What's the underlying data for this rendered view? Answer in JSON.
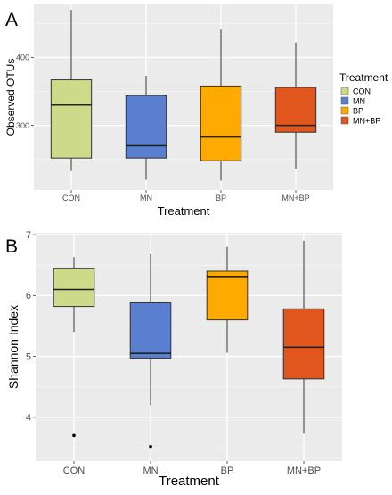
{
  "chart_data": [
    {
      "type": "box",
      "panel_label": "A",
      "xlabel": "Treatment",
      "ylabel": "Observed OTUs",
      "ylim": [
        205,
        478
      ],
      "yticks": [
        300,
        400
      ],
      "grid": true,
      "legend": {
        "title": "Treatment",
        "position": "right",
        "entries": [
          "CON",
          "MN",
          "BP",
          "MN+BP"
        ]
      },
      "categories": [
        "CON",
        "MN",
        "BP",
        "MN+BP"
      ],
      "colors": [
        "#cdda8a",
        "#5b7fd0",
        "#ffaa00",
        "#e1561c"
      ],
      "boxes": [
        {
          "category": "CON",
          "min": 233,
          "q1": 252,
          "median": 330,
          "q3": 367,
          "max": 470,
          "outliers": []
        },
        {
          "category": "MN",
          "min": 220,
          "q1": 252,
          "median": 270,
          "q3": 344,
          "max": 373,
          "outliers": []
        },
        {
          "category": "BP",
          "min": 219,
          "q1": 248,
          "median": 283,
          "q3": 358,
          "max": 441,
          "outliers": []
        },
        {
          "category": "MN+BP",
          "min": 236,
          "q1": 290,
          "median": 300,
          "q3": 356,
          "max": 422,
          "outliers": []
        }
      ]
    },
    {
      "type": "box",
      "panel_label": "B",
      "xlabel": "Treatment",
      "ylabel": "Shannon Index",
      "ylim": [
        3.28,
        7.03
      ],
      "yticks": [
        4,
        5,
        6,
        7
      ],
      "grid": true,
      "categories": [
        "CON",
        "MN",
        "BP",
        "MN+BP"
      ],
      "colors": [
        "#cdda8a",
        "#5b7fd0",
        "#ffaa00",
        "#e1561c"
      ],
      "boxes": [
        {
          "category": "CON",
          "min": 5.4,
          "q1": 5.82,
          "median": 6.1,
          "q3": 6.44,
          "max": 6.63,
          "outliers": [
            3.7
          ]
        },
        {
          "category": "MN",
          "min": 4.2,
          "q1": 4.97,
          "median": 5.05,
          "q3": 5.88,
          "max": 6.68,
          "outliers": [
            3.52
          ]
        },
        {
          "category": "BP",
          "min": 5.06,
          "q1": 5.6,
          "median": 6.3,
          "q3": 6.4,
          "max": 6.8,
          "outliers": []
        },
        {
          "category": "MN+BP",
          "min": 3.73,
          "q1": 4.63,
          "median": 5.15,
          "q3": 5.78,
          "max": 6.9,
          "outliers": []
        }
      ]
    }
  ]
}
